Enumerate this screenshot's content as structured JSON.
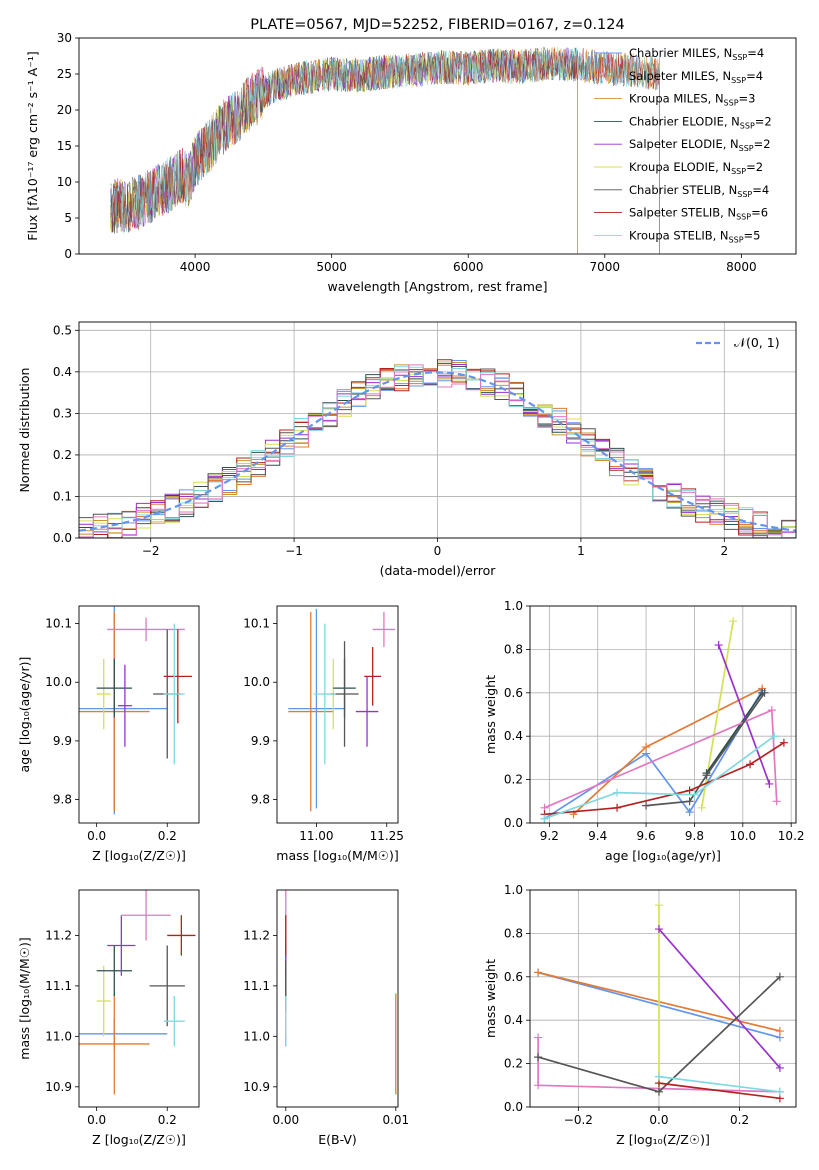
{
  "chart_data": [
    {
      "id": "spectrum",
      "type": "line",
      "title": "PLATE=0567, MJD=52252, FIBERID=0167, z=0.124",
      "xlabel": "wavelength [Angstrom, rest frame]",
      "ylabel": "Flux [fλ10⁻¹⁷ erg cm⁻² s⁻¹ A⁻¹]",
      "xlim": [
        3150,
        8400
      ],
      "ylim": [
        0,
        30
      ],
      "xticks": [
        4000,
        5000,
        6000,
        7000,
        8000
      ],
      "yticks": [
        0,
        5,
        10,
        15,
        20,
        25,
        30
      ],
      "legend_position": "top-right",
      "continuum": {
        "x": [
          3380,
          3500,
          3600,
          3700,
          3800,
          3900,
          3950,
          4000,
          4100,
          4200,
          4300,
          4400,
          4500,
          4600,
          4800,
          5000,
          5200,
          5400,
          5600,
          5800,
          6000,
          6200,
          6400,
          6600,
          6800,
          7000,
          7200,
          7400
        ],
        "y": [
          6.5,
          6.8,
          7.2,
          8.5,
          9.5,
          11.0,
          10.0,
          13.0,
          15.0,
          17.5,
          19.0,
          21.0,
          22.5,
          23.5,
          24.5,
          25.0,
          24.8,
          25.3,
          25.5,
          26.0,
          25.8,
          26.2,
          26.0,
          26.5,
          26.3,
          25.8,
          25.5,
          25.0
        ]
      },
      "series": [
        {
          "label": "Chabrier MILES, N",
          "sub": "SSP",
          "suffix": "=4",
          "color": "#6495ed",
          "x_end": 7400
        },
        {
          "label": "Salpeter MILES, N",
          "sub": "SSP",
          "suffix": "=4",
          "color": "#e07b39",
          "x_end": 7400
        },
        {
          "label": "Kroupa MILES, N",
          "sub": "SSP",
          "suffix": "=3",
          "color": "#c8962c",
          "x_end": 7400
        },
        {
          "label": "Chabrier ELODIE, N",
          "sub": "SSP",
          "suffix": "=2",
          "color": "#2f4f4f",
          "x_end": 6800
        },
        {
          "label": "Salpeter ELODIE, N",
          "sub": "SSP",
          "suffix": "=2",
          "color": "#9932cc",
          "x_end": 6800
        },
        {
          "label": "Kroupa ELODIE, N",
          "sub": "SSP",
          "suffix": "=2",
          "color": "#d4e157",
          "x_end": 6800
        },
        {
          "label": "Chabrier STELIB, N",
          "sub": "SSP",
          "suffix": "=4",
          "color": "#555555",
          "x_end": 7400
        },
        {
          "label": "Salpeter STELIB, N",
          "sub": "SSP",
          "suffix": "=6",
          "color": "#b22222",
          "x_end": 7400
        },
        {
          "label": "Kroupa STELIB, N",
          "sub": "SSP",
          "suffix": "=5",
          "color": "#80d8e0",
          "x_end": 7400
        }
      ]
    },
    {
      "id": "residuals",
      "type": "histogram",
      "xlabel": "(data-model)/error",
      "ylabel": "Normed distribution",
      "xlim": [
        -2.5,
        2.5
      ],
      "ylim": [
        0,
        0.52
      ],
      "xticks": [
        -2,
        -1,
        0,
        1,
        2
      ],
      "yticks": [
        0.0,
        0.1,
        0.2,
        0.3,
        0.4,
        0.5
      ],
      "grid": true,
      "legend_position": "top-right",
      "reference": {
        "label": "𝒩(0, 1)",
        "color": "#6495ed",
        "mean": 0,
        "sigma": 1
      }
    },
    {
      "id": "age-vs-Z",
      "type": "scatter",
      "xlabel": "Z [log₁₀(Z/Z☉)]",
      "ylabel": "age  [log₁₀(age/yr)]",
      "xlim": [
        -0.05,
        0.29
      ],
      "ylim": [
        9.76,
        10.13
      ],
      "xticks": [
        0.0,
        0.2
      ],
      "yticks": [
        9.8,
        9.9,
        10.0,
        10.1
      ],
      "points": [
        {
          "x": 0.05,
          "y": 9.955,
          "xerr": 0.15,
          "yerr": 0.18,
          "color": "#6495ed"
        },
        {
          "x": 0.05,
          "y": 9.95,
          "xerr": 0.1,
          "yerr": 0.17,
          "color": "#e07b39"
        },
        {
          "x": 0.02,
          "y": 9.98,
          "xerr": 0.02,
          "yerr": 0.06,
          "color": "#d4e157"
        },
        {
          "x": 0.05,
          "y": 9.99,
          "xerr": 0.05,
          "yerr": 0.05,
          "color": "#2f4f4f"
        },
        {
          "x": 0.08,
          "y": 9.96,
          "xerr": 0.02,
          "yerr": 0.07,
          "color": "#9932cc"
        },
        {
          "x": 0.14,
          "y": 10.09,
          "xerr": 0.11,
          "yerr": 0.02,
          "color": "#e377c2"
        },
        {
          "x": 0.2,
          "y": 9.98,
          "xerr": 0.04,
          "yerr": 0.11,
          "color": "#555555"
        },
        {
          "x": 0.23,
          "y": 10.01,
          "xerr": 0.04,
          "yerr": 0.08,
          "color": "#b22222"
        },
        {
          "x": 0.22,
          "y": 9.98,
          "xerr": 0.03,
          "yerr": 0.12,
          "color": "#80d8e0"
        }
      ]
    },
    {
      "id": "age-vs-mass",
      "type": "scatter",
      "xlabel": "mass [log₁₀(M/M☉)]",
      "ylabel": "",
      "xlim": [
        10.86,
        11.29
      ],
      "ylim": [
        9.76,
        10.13
      ],
      "xticks": [
        11.0,
        11.25
      ],
      "yticks": [
        9.8,
        9.9,
        10.0,
        10.1
      ],
      "points": [
        {
          "x": 11.0,
          "y": 9.955,
          "xerr": 0.1,
          "yerr": 0.17,
          "color": "#6495ed"
        },
        {
          "x": 10.98,
          "y": 9.95,
          "xerr": 0.08,
          "yerr": 0.17,
          "color": "#e07b39"
        },
        {
          "x": 11.06,
          "y": 9.98,
          "xerr": 0.04,
          "yerr": 0.06,
          "color": "#d4e157"
        },
        {
          "x": 11.1,
          "y": 9.99,
          "xerr": 0.04,
          "yerr": 0.05,
          "color": "#2f4f4f"
        },
        {
          "x": 11.18,
          "y": 9.95,
          "xerr": 0.04,
          "yerr": 0.06,
          "color": "#9932cc"
        },
        {
          "x": 11.24,
          "y": 10.09,
          "xerr": 0.04,
          "yerr": 0.03,
          "color": "#e377c2"
        },
        {
          "x": 11.1,
          "y": 9.98,
          "xerr": 0.05,
          "yerr": 0.09,
          "color": "#555555"
        },
        {
          "x": 11.2,
          "y": 10.01,
          "xerr": 0.03,
          "yerr": 0.05,
          "color": "#b22222"
        },
        {
          "x": 11.03,
          "y": 9.98,
          "xerr": 0.04,
          "yerr": 0.12,
          "color": "#80d8e0"
        }
      ]
    },
    {
      "id": "mass-weight-vs-age",
      "type": "line",
      "xlabel": "age  [log₁₀(age/yr)]",
      "ylabel": "mass weight",
      "xlim": [
        9.12,
        10.22
      ],
      "ylim": [
        0,
        1.0
      ],
      "xticks": [
        9.2,
        9.4,
        9.6,
        9.8,
        10.0,
        10.2
      ],
      "yticks": [
        0.0,
        0.2,
        0.4,
        0.6,
        0.8,
        1.0
      ],
      "grid": true,
      "series": [
        {
          "color": "#6495ed",
          "x": [
            9.18,
            9.6,
            9.78,
            10.08
          ],
          "y": [
            0.02,
            0.32,
            0.05,
            0.61
          ]
        },
        {
          "color": "#e07b39",
          "x": [
            9.3,
            9.6,
            10.08
          ],
          "y": [
            0.04,
            0.35,
            0.62
          ]
        },
        {
          "color": "#d4e157",
          "x": [
            9.83,
            9.96
          ],
          "y": [
            0.07,
            0.93
          ]
        },
        {
          "color": "#2f4f4f",
          "x": [
            9.85,
            10.08
          ],
          "y": [
            0.23,
            0.6
          ]
        },
        {
          "color": "#9932cc",
          "x": [
            9.9,
            10.11
          ],
          "y": [
            0.82,
            0.18
          ]
        },
        {
          "color": "#e377c2",
          "x": [
            9.18,
            10.12,
            10.14
          ],
          "y": [
            0.07,
            0.52,
            0.1
          ]
        },
        {
          "color": "#555555",
          "x": [
            9.6,
            9.78,
            9.85,
            10.09
          ],
          "y": [
            0.08,
            0.1,
            0.22,
            0.6
          ]
        },
        {
          "color": "#b22222",
          "x": [
            9.18,
            9.48,
            9.78,
            10.03,
            10.17
          ],
          "y": [
            0.04,
            0.07,
            0.15,
            0.27,
            0.37
          ]
        },
        {
          "color": "#80d8e0",
          "x": [
            9.18,
            9.48,
            9.8,
            10.13
          ],
          "y": [
            0.02,
            0.14,
            0.13,
            0.4
          ]
        }
      ]
    },
    {
      "id": "mass-vs-Z",
      "type": "scatter",
      "xlabel": "Z [log₁₀(Z/Z☉)]",
      "ylabel": "mass [log₁₀(M/M☉)]",
      "xlim": [
        -0.05,
        0.29
      ],
      "ylim": [
        10.86,
        11.29
      ],
      "xticks": [
        0.0,
        0.2
      ],
      "yticks": [
        10.9,
        11.0,
        11.1,
        11.2
      ],
      "points": [
        {
          "x": 0.05,
          "y": 11.005,
          "xerr": 0.15,
          "yerr": 0.03,
          "color": "#6495ed"
        },
        {
          "x": 0.05,
          "y": 10.985,
          "xerr": 0.1,
          "yerr": 0.1,
          "color": "#e07b39"
        },
        {
          "x": 0.02,
          "y": 11.07,
          "xerr": 0.02,
          "yerr": 0.07,
          "color": "#d4e157"
        },
        {
          "x": 0.05,
          "y": 11.13,
          "xerr": 0.05,
          "yerr": 0.05,
          "color": "#2f4f4f"
        },
        {
          "x": 0.07,
          "y": 11.18,
          "xerr": 0.04,
          "yerr": 0.06,
          "color": "#9932cc"
        },
        {
          "x": 0.14,
          "y": 11.24,
          "xerr": 0.07,
          "yerr": 0.05,
          "color": "#e377c2"
        },
        {
          "x": 0.2,
          "y": 11.1,
          "xerr": 0.05,
          "yerr": 0.08,
          "color": "#555555"
        },
        {
          "x": 0.24,
          "y": 11.2,
          "xerr": 0.04,
          "yerr": 0.04,
          "color": "#b22222"
        },
        {
          "x": 0.22,
          "y": 11.03,
          "xerr": 0.03,
          "yerr": 0.05,
          "color": "#80d8e0"
        }
      ]
    },
    {
      "id": "mass-vs-EBV",
      "type": "scatter",
      "xlabel": "E(B-V)",
      "ylabel": "",
      "xlim": [
        -0.0008,
        0.0102
      ],
      "ylim": [
        10.86,
        11.29
      ],
      "xticks": [
        0.0,
        0.01
      ],
      "xtick_labels": [
        "0.00",
        "0.01"
      ],
      "yticks": [
        10.9,
        11.0,
        11.1,
        11.2
      ],
      "points": [
        {
          "x": 0.0,
          "y": 11.01,
          "yerr": 0.03,
          "color": "#6495ed"
        },
        {
          "x": 0.01,
          "y": 10.985,
          "yerr": 0.1,
          "color": "#e07b39"
        },
        {
          "x": 0.0,
          "y": 11.07,
          "yerr": 0.07,
          "color": "#d4e157"
        },
        {
          "x": 0.0,
          "y": 11.13,
          "yerr": 0.05,
          "color": "#2f4f4f"
        },
        {
          "x": 0.0,
          "y": 11.18,
          "yerr": 0.06,
          "color": "#9932cc"
        },
        {
          "x": 0.0,
          "y": 11.24,
          "yerr": 0.05,
          "color": "#e377c2"
        },
        {
          "x": 0.0,
          "y": 11.1,
          "yerr": 0.05,
          "color": "#555555"
        },
        {
          "x": 0.0,
          "y": 11.2,
          "yerr": 0.04,
          "color": "#b22222"
        },
        {
          "x": 0.0,
          "y": 11.03,
          "yerr": 0.05,
          "color": "#80d8e0"
        }
      ]
    },
    {
      "id": "mass-weight-vs-Z",
      "type": "line",
      "xlabel": "Z [log₁₀(Z/Z☉)]",
      "ylabel": "mass weight",
      "xlim": [
        -0.32,
        0.34
      ],
      "ylim": [
        0,
        1.0
      ],
      "xticks": [
        -0.2,
        0.0,
        0.2
      ],
      "yticks": [
        0.0,
        0.2,
        0.4,
        0.6,
        0.8,
        1.0
      ],
      "grid": true,
      "series": [
        {
          "color": "#6495ed",
          "x": [
            -0.3,
            0.3
          ],
          "y": [
            0.62,
            0.32
          ]
        },
        {
          "color": "#e07b39",
          "x": [
            -0.3,
            0.3
          ],
          "y": [
            0.62,
            0.35
          ]
        },
        {
          "color": "#d4e157",
          "x": [
            0.0,
            0.0
          ],
          "y": [
            0.07,
            0.93
          ]
        },
        {
          "color": "#9932cc",
          "x": [
            0.0,
            0.3
          ],
          "y": [
            0.82,
            0.18
          ]
        },
        {
          "color": "#e377c2",
          "x": [
            -0.3,
            -0.3,
            0.3
          ],
          "y": [
            0.32,
            0.1,
            0.07
          ]
        },
        {
          "color": "#555555",
          "x": [
            -0.3,
            0.0,
            0.3
          ],
          "y": [
            0.23,
            0.07,
            0.6
          ]
        },
        {
          "color": "#b22222",
          "x": [
            0.0,
            0.3
          ],
          "y": [
            0.11,
            0.04
          ]
        },
        {
          "color": "#80d8e0",
          "x": [
            0.0,
            0.3
          ],
          "y": [
            0.14,
            0.07
          ]
        }
      ]
    }
  ]
}
